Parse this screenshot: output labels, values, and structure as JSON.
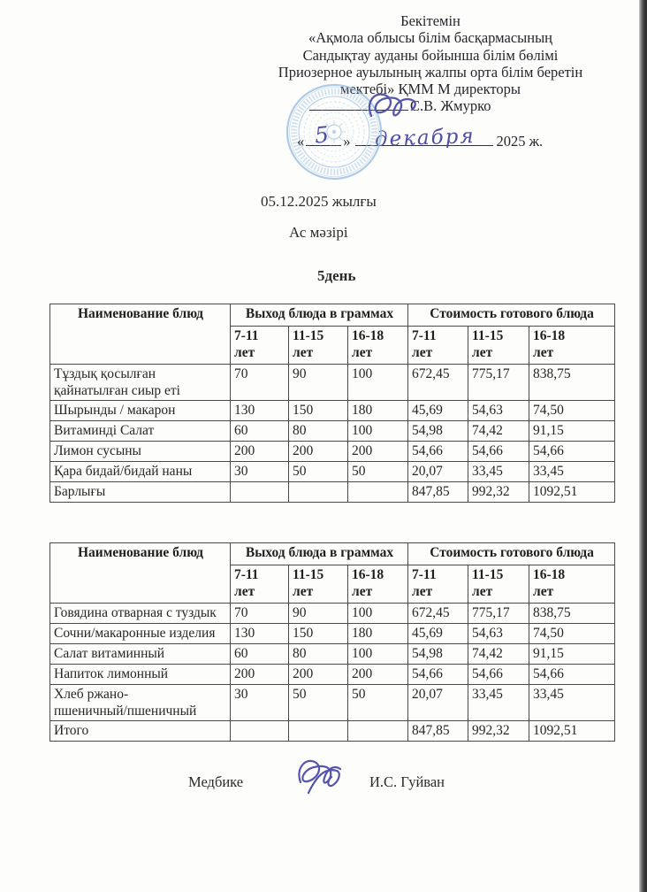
{
  "approval": {
    "lines": [
      "Бекітемін",
      "«Ақмола облысы білім басқармасының",
      "Сандықтау ауданы бойынша білім бөлімі",
      "Приозерное ауылының жалпы орта білім беретін",
      "мектебі»  ҚММ М директоры"
    ],
    "director_name": "С.В. Жмурко",
    "quote_open": "«",
    "quote_close": "»",
    "year_suffix": "2025 ж.",
    "handwritten_day": "5",
    "handwritten_month": "декабря"
  },
  "document": {
    "date_line": "05.12.2025 жылғы",
    "menu_title": "Ас мәзірі",
    "day_title": "5день"
  },
  "tables": [
    {
      "header": {
        "name_col": "Наименование блюд",
        "group_output": "Выход блюда в граммах",
        "group_cost": "Стоимость готового блюда",
        "ages": [
          "7-11",
          "11-15",
          "16-18",
          "7-11",
          "11-15",
          "16-18"
        ],
        "age_unit": "лет"
      },
      "rows": [
        [
          "Тұздық қосылған\nқайнатылған сиыр еті",
          "70",
          "90",
          "100",
          "672,45",
          "775,17",
          "838,75"
        ],
        [
          "Шырынды / макарон",
          "130",
          "150",
          "180",
          "45,69",
          "54,63",
          "74,50"
        ],
        [
          "Витаминді Салат",
          "60",
          "80",
          "100",
          "54,98",
          "74,42",
          "91,15"
        ],
        [
          "Лимон сусыны",
          "200",
          "200",
          "200",
          "54,66",
          "54,66",
          "54,66"
        ],
        [
          "Қара бидай/бидай наны",
          "30",
          "50",
          "50",
          "20,07",
          "33,45",
          "33,45"
        ],
        [
          "Барлығы",
          "",
          "",
          "",
          "847,85",
          "992,32",
          "1092,51"
        ]
      ]
    },
    {
      "header": {
        "name_col": "Наименование блюд",
        "group_output": "Выход блюда в граммах",
        "group_cost": "Стоимость готового блюда",
        "ages": [
          "7-11",
          "11-15",
          "16-18",
          "7-11",
          "11-15",
          "16-18"
        ],
        "age_unit": "лет"
      },
      "rows": [
        [
          "Говядина отварная с туздык",
          "70",
          "90",
          "100",
          "672,45",
          "775,17",
          "838,75"
        ],
        [
          "Сочни/макаронные изделия",
          "130",
          "150",
          "180",
          "45,69",
          "54,63",
          "74,50"
        ],
        [
          "Салат витаминный",
          "60",
          "80",
          "100",
          "54,98",
          "74,42",
          "91,15"
        ],
        [
          "Напиток лимонный",
          "200",
          "200",
          "200",
          "54,66",
          "54,66",
          "54,66"
        ],
        [
          "Хлеб ржано-\nпшеничный/пшеничный",
          "30",
          "50",
          "50",
          "20,07",
          "33,45",
          "33,45"
        ],
        [
          "Итого",
          "",
          "",
          "",
          "847,85",
          "992,32",
          "1092,51"
        ]
      ]
    }
  ],
  "footer": {
    "role": "Медбике",
    "name": "И.С. Гуйван"
  },
  "colors": {
    "ink_blue": "#4d4da6",
    "stamp_blue": "#9cc2e2",
    "text": "#2b2b2b"
  }
}
